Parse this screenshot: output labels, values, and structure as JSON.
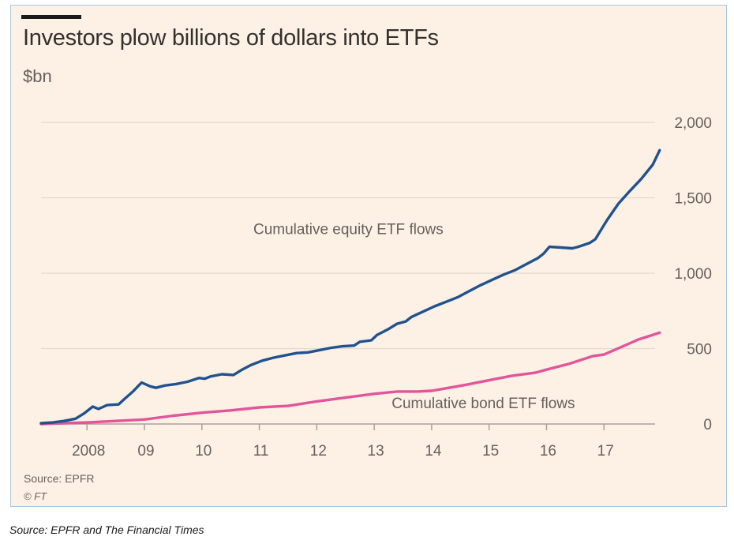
{
  "header": {
    "title": "Investors plow billions of dollars into ETFs",
    "unit": "$bn"
  },
  "footer": {
    "source": "Source: EPFR",
    "copyright": "© FT"
  },
  "caption": "Source: EPFR and The Financial Times",
  "colors": {
    "background": "#fdf1e5",
    "equity": "#20528f",
    "bond": "#e1559a",
    "grid": "#e6d9ce",
    "text": "#66605c"
  },
  "chart_data": {
    "type": "line",
    "title": "Investors plow billions of dollars into ETFs",
    "ylabel": "$bn",
    "xlabel": "",
    "ylim": [
      0,
      2000
    ],
    "xlim": [
      2007.2,
      2018.0
    ],
    "yticks": [
      0,
      500,
      1000,
      1500,
      2000
    ],
    "ytick_labels": [
      "0",
      "500",
      "1,000",
      "1,500",
      "2,000"
    ],
    "xticks": [
      2008,
      2009,
      2010,
      2011,
      2012,
      2013,
      2014,
      2015,
      2016,
      2017
    ],
    "xtick_labels": [
      "2008",
      "09",
      "10",
      "11",
      "12",
      "13",
      "14",
      "15",
      "16",
      "17"
    ],
    "grid": true,
    "series": [
      {
        "name": "Cumulative equity ETF flows",
        "x": [
          2007.2,
          2007.4,
          2007.6,
          2007.8,
          2007.95,
          2008.1,
          2008.2,
          2008.35,
          2008.55,
          2008.65,
          2008.8,
          2008.95,
          2009.1,
          2009.2,
          2009.35,
          2009.55,
          2009.75,
          2009.95,
          2010.05,
          2010.15,
          2010.35,
          2010.55,
          2010.7,
          2010.85,
          2011.05,
          2011.25,
          2011.45,
          2011.65,
          2011.85,
          2012.05,
          2012.25,
          2012.45,
          2012.65,
          2012.75,
          2012.95,
          2013.05,
          2013.25,
          2013.4,
          2013.55,
          2013.65,
          2013.85,
          2014.05,
          2014.25,
          2014.45,
          2014.65,
          2014.85,
          2015.05,
          2015.25,
          2015.45,
          2015.65,
          2015.85,
          2015.95,
          2016.05,
          2016.25,
          2016.45,
          2016.55,
          2016.75,
          2016.85,
          2017.05,
          2017.25,
          2017.45,
          2017.65,
          2017.85,
          2017.97
        ],
        "values": [
          5,
          10,
          20,
          35,
          70,
          115,
          100,
          125,
          130,
          165,
          215,
          275,
          250,
          240,
          255,
          265,
          280,
          305,
          300,
          315,
          330,
          325,
          360,
          390,
          420,
          440,
          455,
          470,
          475,
          490,
          505,
          515,
          520,
          545,
          555,
          590,
          630,
          665,
          680,
          710,
          745,
          780,
          810,
          840,
          880,
          920,
          955,
          990,
          1020,
          1060,
          1100,
          1130,
          1175,
          1170,
          1165,
          1175,
          1200,
          1225,
          1350,
          1460,
          1545,
          1625,
          1720,
          1815
        ]
      },
      {
        "name": "Cumulative bond ETF flows",
        "x": [
          2007.2,
          2007.6,
          2008.0,
          2008.5,
          2009.0,
          2009.5,
          2010.0,
          2010.5,
          2011.0,
          2011.5,
          2012.0,
          2012.5,
          2013.0,
          2013.4,
          2013.75,
          2014.0,
          2014.3,
          2014.6,
          2015.0,
          2015.4,
          2015.8,
          2016.0,
          2016.4,
          2016.8,
          2017.0,
          2017.3,
          2017.6,
          2017.97
        ],
        "values": [
          0,
          5,
          10,
          20,
          30,
          55,
          75,
          90,
          110,
          120,
          150,
          175,
          200,
          215,
          215,
          220,
          240,
          260,
          290,
          320,
          340,
          360,
          400,
          450,
          460,
          510,
          560,
          605
        ]
      }
    ],
    "annotations": [
      {
        "text": "Cumulative equity ETF flows",
        "series": "equity",
        "x": 2012.55,
        "y": 1260
      },
      {
        "text": "Cumulative bond ETF flows",
        "series": "bond",
        "x": 2014.9,
        "y": 105
      }
    ]
  }
}
